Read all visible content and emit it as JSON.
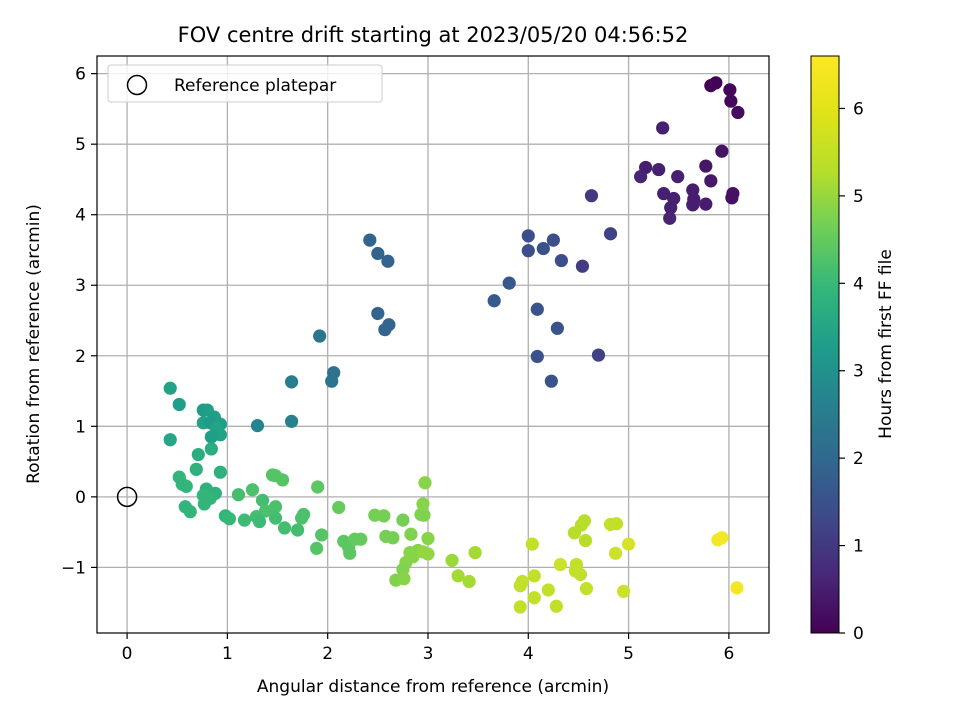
{
  "chart_data": {
    "type": "scatter",
    "title": "FOV centre drift starting at 2023/05/20 04:56:52",
    "xlabel": "Angular distance from reference (arcmin)",
    "ylabel": "Rotation from reference (arcmin)",
    "xlim": [
      -0.3,
      6.4
    ],
    "ylim": [
      -1.93,
      6.25
    ],
    "xticks": [
      0,
      1,
      2,
      3,
      4,
      5,
      6
    ],
    "xtick_labels": [
      "0",
      "1",
      "2",
      "3",
      "4",
      "5",
      "6"
    ],
    "yticks": [
      -1,
      0,
      1,
      2,
      3,
      4,
      5,
      6
    ],
    "ytick_labels": [
      "−1",
      "0",
      "1",
      "2",
      "3",
      "4",
      "5",
      "6"
    ],
    "grid": true,
    "legend": {
      "placement": "top-left",
      "entries": [
        "Reference platepar"
      ]
    },
    "reference_point": {
      "x": 0,
      "y": 0,
      "label": "Reference platepar"
    },
    "colorbar": {
      "label": "Hours from first FF file",
      "range": [
        0,
        6.6
      ],
      "ticks": [
        0,
        1,
        2,
        3,
        4,
        5,
        6
      ],
      "tick_labels": [
        "0",
        "1",
        "2",
        "3",
        "4",
        "5",
        "6"
      ],
      "colormap": "viridis"
    },
    "points": [
      [
        5.82,
        5.83,
        0.05
      ],
      [
        5.87,
        5.87,
        0.05
      ],
      [
        6.01,
        5.77,
        0.1
      ],
      [
        6.02,
        5.61,
        0.15
      ],
      [
        6.09,
        5.45,
        0.2
      ],
      [
        5.34,
        5.23,
        0.6
      ],
      [
        5.93,
        4.9,
        0.35
      ],
      [
        5.77,
        4.69,
        0.4
      ],
      [
        5.17,
        4.67,
        0.55
      ],
      [
        5.3,
        4.64,
        0.6
      ],
      [
        5.12,
        4.54,
        0.65
      ],
      [
        5.49,
        4.54,
        0.6
      ],
      [
        5.82,
        4.48,
        0.45
      ],
      [
        5.64,
        4.35,
        0.55
      ],
      [
        5.35,
        4.3,
        0.6
      ],
      [
        6.04,
        4.3,
        0.3
      ],
      [
        6.03,
        4.24,
        0.3
      ],
      [
        5.65,
        4.22,
        0.55
      ],
      [
        5.45,
        4.23,
        0.6
      ],
      [
        5.64,
        4.14,
        0.55
      ],
      [
        5.77,
        4.15,
        0.5
      ],
      [
        5.42,
        4.1,
        0.6
      ],
      [
        5.41,
        3.95,
        0.65
      ],
      [
        4.63,
        4.27,
        1.1
      ],
      [
        4.82,
        3.73,
        1.3
      ],
      [
        4.0,
        3.7,
        1.6
      ],
      [
        4.15,
        3.52,
        1.65
      ],
      [
        4.25,
        3.64,
        1.6
      ],
      [
        4.0,
        3.49,
        1.6
      ],
      [
        4.33,
        3.35,
        1.55
      ],
      [
        4.54,
        3.27,
        1.2
      ],
      [
        3.81,
        3.03,
        1.8
      ],
      [
        3.66,
        2.78,
        1.85
      ],
      [
        4.09,
        2.66,
        1.7
      ],
      [
        4.29,
        2.39,
        1.7
      ],
      [
        4.7,
        2.01,
        1.3
      ],
      [
        4.09,
        1.99,
        1.65
      ],
      [
        4.23,
        1.64,
        1.7
      ],
      [
        2.42,
        3.64,
        2.1
      ],
      [
        2.5,
        3.45,
        2.1
      ],
      [
        2.6,
        3.34,
        2.1
      ],
      [
        2.5,
        2.6,
        2.1
      ],
      [
        2.61,
        2.44,
        2.15
      ],
      [
        2.57,
        2.37,
        2.15
      ],
      [
        1.92,
        2.28,
        2.6
      ],
      [
        2.06,
        1.76,
        2.5
      ],
      [
        2.04,
        1.64,
        2.55
      ],
      [
        1.64,
        1.63,
        2.8
      ],
      [
        1.64,
        1.07,
        2.9
      ],
      [
        1.3,
        1.01,
        3.0
      ],
      [
        0.43,
        1.54,
        3.8
      ],
      [
        0.52,
        1.31,
        3.7
      ],
      [
        0.76,
        1.23,
        3.6
      ],
      [
        0.8,
        1.23,
        3.7
      ],
      [
        0.87,
        1.13,
        3.7
      ],
      [
        0.76,
        1.05,
        3.8
      ],
      [
        0.83,
        1.05,
        3.6
      ],
      [
        0.93,
        1.03,
        3.7
      ],
      [
        0.89,
        0.98,
        3.8
      ],
      [
        0.93,
        0.88,
        3.8
      ],
      [
        0.84,
        0.85,
        3.7
      ],
      [
        0.43,
        0.81,
        3.9
      ],
      [
        0.84,
        0.68,
        4.1
      ],
      [
        0.71,
        0.6,
        4.1
      ],
      [
        0.69,
        0.39,
        4.2
      ],
      [
        0.93,
        0.35,
        4.2
      ],
      [
        0.52,
        0.28,
        4.3
      ],
      [
        0.55,
        0.18,
        4.3
      ],
      [
        0.59,
        0.15,
        4.3
      ],
      [
        0.79,
        0.11,
        4.2
      ],
      [
        0.88,
        0.05,
        4.2
      ],
      [
        0.76,
        0.02,
        4.3
      ],
      [
        0.83,
        -0.02,
        4.3
      ],
      [
        0.77,
        -0.1,
        4.3
      ],
      [
        0.58,
        -0.14,
        4.3
      ],
      [
        0.63,
        -0.21,
        4.3
      ],
      [
        0.98,
        -0.27,
        4.3
      ],
      [
        1.02,
        -0.31,
        4.4
      ],
      [
        1.11,
        0.03,
        4.6
      ],
      [
        1.25,
        0.1,
        4.7
      ],
      [
        1.35,
        -0.05,
        4.6
      ],
      [
        1.45,
        0.31,
        4.8
      ],
      [
        1.48,
        0.3,
        4.8
      ],
      [
        1.55,
        0.24,
        4.8
      ],
      [
        1.48,
        -0.14,
        4.7
      ],
      [
        1.38,
        -0.2,
        4.7
      ],
      [
        1.29,
        -0.28,
        4.6
      ],
      [
        1.32,
        -0.35,
        4.5
      ],
      [
        1.17,
        -0.33,
        4.5
      ],
      [
        1.48,
        -0.3,
        4.6
      ],
      [
        1.57,
        -0.44,
        4.6
      ],
      [
        1.7,
        -0.47,
        4.6
      ],
      [
        1.74,
        -0.3,
        4.7
      ],
      [
        1.76,
        -0.25,
        4.7
      ],
      [
        1.9,
        0.14,
        4.9
      ],
      [
        1.94,
        -0.54,
        4.8
      ],
      [
        1.89,
        -0.73,
        4.8
      ],
      [
        2.11,
        -0.15,
        5.0
      ],
      [
        2.16,
        -0.63,
        4.9
      ],
      [
        2.21,
        -0.72,
        4.9
      ],
      [
        2.22,
        -0.8,
        4.9
      ],
      [
        2.27,
        -0.6,
        5.0
      ],
      [
        2.33,
        -0.6,
        5.0
      ],
      [
        2.47,
        -0.26,
        5.2
      ],
      [
        2.56,
        -0.27,
        5.2
      ],
      [
        2.58,
        -0.56,
        5.2
      ],
      [
        2.65,
        -0.58,
        5.2
      ],
      [
        2.75,
        -0.33,
        5.2
      ],
      [
        2.83,
        -0.53,
        5.3
      ],
      [
        2.82,
        -0.79,
        5.4
      ],
      [
        2.9,
        -0.76,
        5.4
      ],
      [
        2.85,
        -0.85,
        5.4
      ],
      [
        2.78,
        -0.93,
        5.4
      ],
      [
        2.75,
        -1.03,
        5.3
      ],
      [
        2.68,
        -1.18,
        5.3
      ],
      [
        2.76,
        -1.16,
        5.4
      ],
      [
        2.93,
        -0.25,
        5.3
      ],
      [
        2.96,
        -0.26,
        5.3
      ],
      [
        2.95,
        -0.1,
        5.4
      ],
      [
        2.97,
        0.2,
        5.4
      ],
      [
        3.0,
        -0.59,
        5.4
      ],
      [
        3.0,
        -0.81,
        5.5
      ],
      [
        2.95,
        -0.78,
        5.5
      ],
      [
        3.24,
        -0.9,
        5.6
      ],
      [
        3.3,
        -1.12,
        5.7
      ],
      [
        3.41,
        -1.2,
        5.7
      ],
      [
        3.47,
        -0.79,
        5.7
      ],
      [
        4.04,
        -0.67,
        6.0
      ],
      [
        3.92,
        -1.26,
        6.0
      ],
      [
        3.94,
        -1.2,
        6.0
      ],
      [
        4.06,
        -1.12,
        6.0
      ],
      [
        4.06,
        -1.43,
        6.0
      ],
      [
        3.92,
        -1.56,
        6.0
      ],
      [
        4.2,
        -1.32,
        6.0
      ],
      [
        4.28,
        -1.55,
        6.0
      ],
      [
        4.32,
        -0.96,
        6.1
      ],
      [
        4.46,
        -0.51,
        5.9
      ],
      [
        4.53,
        -0.4,
        5.9
      ],
      [
        4.56,
        -0.34,
        5.9
      ],
      [
        4.57,
        -0.62,
        5.9
      ],
      [
        4.48,
        -0.96,
        6.0
      ],
      [
        4.47,
        -1.05,
        6.0
      ],
      [
        4.52,
        -1.1,
        6.0
      ],
      [
        4.58,
        -1.3,
        6.0
      ],
      [
        4.82,
        -0.39,
        6.0
      ],
      [
        4.88,
        -0.38,
        6.0
      ],
      [
        4.87,
        -0.8,
        6.1
      ],
      [
        4.95,
        -1.34,
        6.1
      ],
      [
        5.0,
        -0.67,
        6.2
      ],
      [
        5.89,
        -0.61,
        6.5
      ],
      [
        5.93,
        -0.58,
        6.5
      ],
      [
        6.08,
        -1.29,
        6.5
      ]
    ]
  }
}
